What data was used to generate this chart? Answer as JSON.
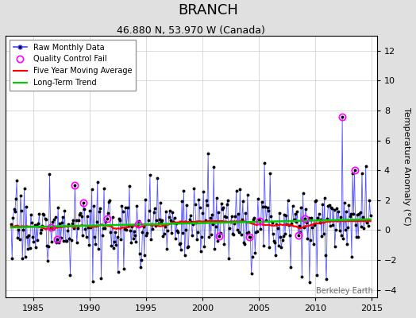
{
  "title": "BRANCH",
  "subtitle": "46.880 N, 53.970 W (Canada)",
  "ylabel": "Temperature Anomaly (°C)",
  "watermark": "Berkeley Earth",
  "xlim": [
    1982.5,
    2015.5
  ],
  "ylim": [
    -4.5,
    13.0
  ],
  "yticks": [
    -4,
    -2,
    0,
    2,
    4,
    6,
    8,
    10,
    12
  ],
  "xticks": [
    1985,
    1990,
    1995,
    2000,
    2005,
    2010,
    2015
  ],
  "raw_line_color": "#4444ff",
  "raw_marker_color": "#000000",
  "qc_fail_color": "#ff00ff",
  "moving_avg_color": "#ff0000",
  "trend_color": "#00cc00",
  "background_color": "#e0e0e0",
  "plot_bg_color": "#ffffff",
  "grid_color": "#cccccc",
  "title_fontsize": 13,
  "subtitle_fontsize": 9,
  "tick_fontsize": 8,
  "ylabel_fontsize": 8,
  "watermark_fontsize": 7,
  "legend_fontsize": 7
}
